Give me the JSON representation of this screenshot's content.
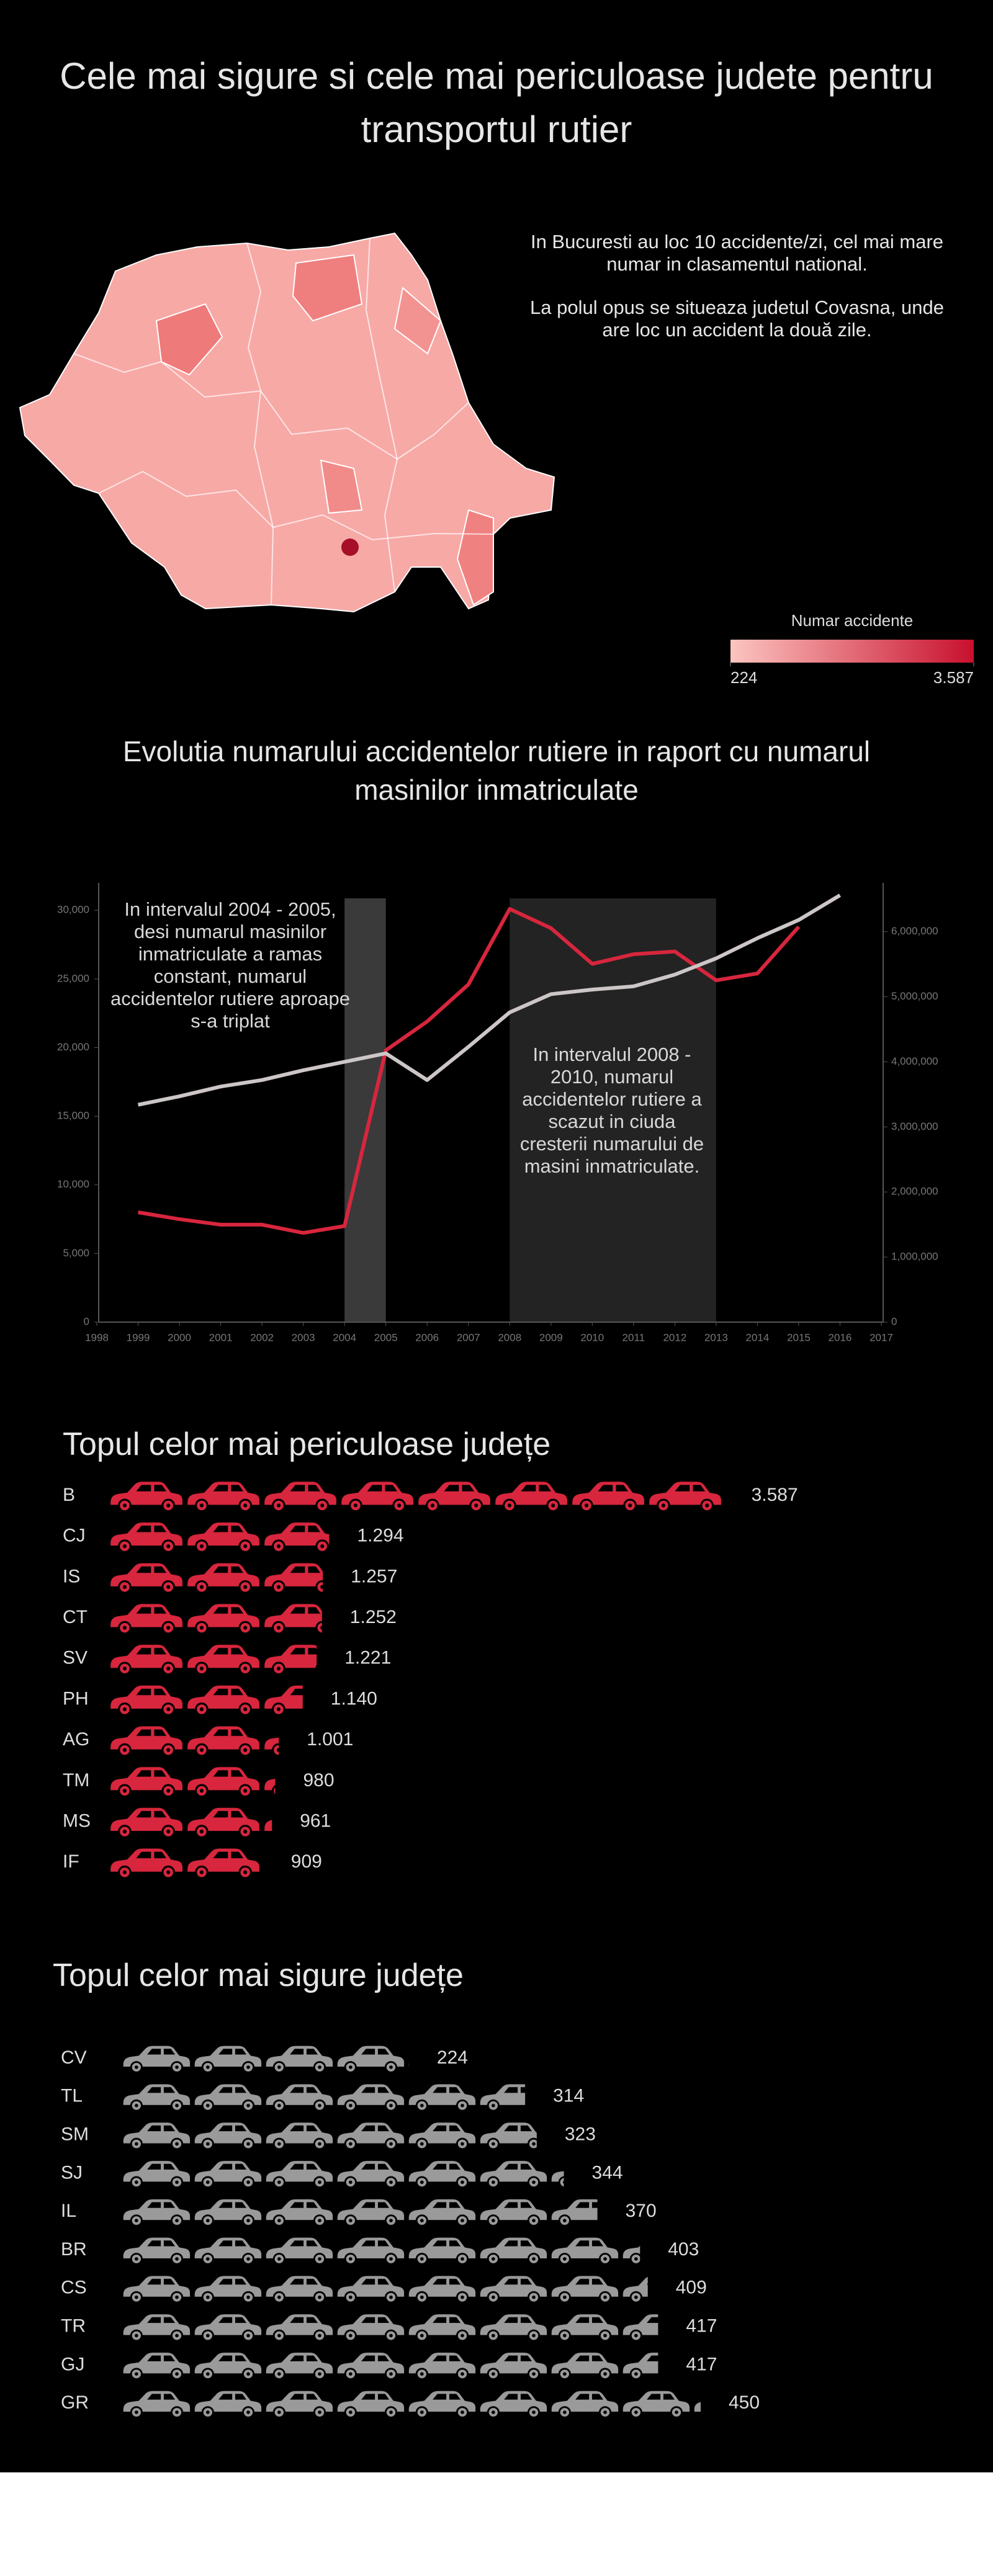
{
  "title": "Cele mai sigure si cele mai periculoase judete pentru transportul rutier",
  "chart_data": [
    {
      "type": "choropleth",
      "notes": [
        "In Bucuresti au loc 10 accidente/zi, cel mai mare numar in clasamentul national.",
        "La polul opus se situeaza judetul Covasna, unde are loc un accident la două zile."
      ],
      "legend_title": "Numar accidente",
      "scale": [
        224,
        {
          "value": 3587,
          "label": "3.587"
        }
      ],
      "colors": [
        "#fcc5c0",
        "#c8102e"
      ]
    },
    {
      "type": "line",
      "title": "Evolutia numarului accidentelor rutiere in raport cu numarul masinilor inmatriculate",
      "x": [
        1999,
        2000,
        2001,
        2002,
        2003,
        2004,
        2005,
        2006,
        2007,
        2008,
        2009,
        2010,
        2011,
        2012,
        2013,
        2014,
        2015,
        2016
      ],
      "xlim": [
        1998,
        2017
      ],
      "xticks": [
        1998,
        1999,
        2000,
        2001,
        2002,
        2003,
        2004,
        2005,
        2006,
        2007,
        2008,
        2009,
        2010,
        2011,
        2012,
        2013,
        2014,
        2015,
        2016,
        2017
      ],
      "ylim": [
        0,
        32000
      ],
      "yticks": [
        0,
        {
          "value": 5000,
          "label": "5,000"
        },
        {
          "value": 10000,
          "label": "10,000"
        },
        {
          "value": 15000,
          "label": "15,000"
        },
        {
          "value": 20000,
          "label": "20,000"
        },
        {
          "value": 25000,
          "label": "25,000"
        },
        {
          "value": 30000,
          "label": "30,000"
        }
      ],
      "y2lim": [
        0,
        6750000
      ],
      "y2ticks": [
        0,
        {
          "value": 1000000,
          "label": "1,000,000"
        },
        {
          "value": 2000000,
          "label": "2,000,000"
        },
        {
          "value": 3000000,
          "label": "3,000,000"
        },
        {
          "value": 4000000,
          "label": "4,000,000"
        },
        {
          "value": 5000000,
          "label": "5,000,000"
        },
        {
          "value": 6000000,
          "label": "6,000,000"
        }
      ],
      "series": [
        {
          "color": "#d7263d",
          "values": [
            8000,
            7500,
            7100,
            7100,
            6500,
            7000,
            19800,
            21900,
            24600,
            30100,
            28700,
            26100,
            26800,
            27000,
            24900,
            25400,
            28800,
            null
          ]
        },
        {
          "axis": "y2",
          "color": "#cdc6c6",
          "values": [
            3340000,
            3470000,
            3620000,
            3720000,
            3870000,
            4000000,
            4130000,
            3720000,
            4230000,
            4760000,
            5040000,
            5110000,
            5160000,
            5340000,
            5590000,
            5900000,
            6180000,
            6560000
          ]
        }
      ],
      "highlights": [
        {
          "from": 2004,
          "to": 2005,
          "color": "#3a3a3a",
          "text": "In intervalul 2004 - 2005, desi numarul masinilor inmatriculate a ramas constant, numarul accidentelor rutiere aproape s-a triplat"
        },
        {
          "from": 2008,
          "to": 2013,
          "color": "#232323",
          "text": "In intervalul 2008 - 2010, numarul accidentelor rutiere a scazut in ciuda cresterii numarului de masini inmatriculate."
        }
      ]
    },
    {
      "type": "pictogram",
      "title": "Topul celor mai periculoase județe",
      "categories": [
        "B",
        "CJ",
        "IS",
        "CT",
        "SV",
        "PH",
        "AG",
        "TM",
        "MS",
        "IF"
      ],
      "values": [
        3587,
        1294,
        1257,
        1252,
        1221,
        1140,
        1001,
        980,
        961,
        909
      ],
      "value_labels": [
        "3.587",
        "1.294",
        "1.257",
        "1.252",
        "1.221",
        "1.140",
        "1.001",
        "980",
        "961",
        "909"
      ],
      "color": "#d7263d"
    },
    {
      "type": "pictogram",
      "title": "Topul celor mai sigure județe",
      "categories": [
        "CV",
        "TL",
        "SM",
        "SJ",
        "IL",
        "BR",
        "CS",
        "TR",
        "GJ",
        "GR"
      ],
      "values": [
        224,
        314,
        323,
        344,
        370,
        403,
        409,
        417,
        417,
        450
      ],
      "color": "#9a9a9a"
    }
  ]
}
